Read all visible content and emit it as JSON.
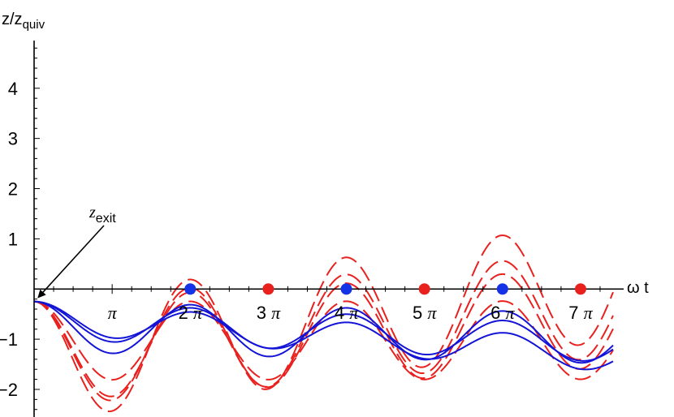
{
  "chart_data": {
    "type": "line",
    "title": "",
    "xlabel": "ω t",
    "ylabel": "z/z",
    "ylabel_sub": "quiv",
    "x_range": [
      0,
      23.3
    ],
    "ylim": [
      -2.55,
      4.95
    ],
    "grid": false,
    "x_ticks": [
      {
        "value": 3.14159,
        "coef": "",
        "symbol": "π"
      },
      {
        "value": 6.28319,
        "coef": "2 ",
        "symbol": "π"
      },
      {
        "value": 9.42478,
        "coef": "3 ",
        "symbol": "π"
      },
      {
        "value": 12.56637,
        "coef": "4 ",
        "symbol": "π"
      },
      {
        "value": 15.70796,
        "coef": "5 ",
        "symbol": "π"
      },
      {
        "value": 18.84956,
        "coef": "6 ",
        "symbol": "π"
      },
      {
        "value": 21.99115,
        "coef": "7 ",
        "symbol": "π"
      }
    ],
    "y_ticks": [
      {
        "value": -2,
        "label": "−2"
      },
      {
        "value": -1,
        "label": "−1"
      },
      {
        "value": 1,
        "label": "1"
      },
      {
        "value": 2,
        "label": "2"
      },
      {
        "value": 3,
        "label": "3"
      },
      {
        "value": 4,
        "label": "4"
      }
    ],
    "annotation": {
      "text": "z",
      "sub": "exit",
      "x": 0,
      "y": -0.25
    },
    "series": [
      {
        "style": "dashed",
        "color": "#e8211e",
        "phi": 1.2,
        "d": 0.07,
        "y0": -0.25
      },
      {
        "style": "dashed",
        "color": "#e8211e",
        "phi": 1.05,
        "d": 0.043,
        "y0": -0.25
      },
      {
        "style": "dashed",
        "color": "#e8211e",
        "phi": 0.99,
        "d": 0.029,
        "y0": -0.25
      },
      {
        "style": "dashed",
        "color": "#e8211e",
        "phi": 0.78,
        "d": 0.0005,
        "y0": -0.25
      },
      {
        "style": "solid",
        "color": "#1414d6",
        "phi": 0.5,
        "d": -0.01,
        "y0": -0.25
      },
      {
        "style": "solid",
        "color": "#1414d6",
        "phi": 0.37,
        "d": -0.02,
        "y0": -0.25
      },
      {
        "style": "solid",
        "color": "#1414d6",
        "phi": 0.31,
        "d": -0.033,
        "y0": -0.25
      }
    ],
    "points": [
      {
        "x": 6.28319,
        "y": 0,
        "color": "#1432e6"
      },
      {
        "x": 12.56637,
        "y": 0,
        "color": "#1432e6"
      },
      {
        "x": 18.84956,
        "y": 0,
        "color": "#1432e6"
      },
      {
        "x": 9.42478,
        "y": 0,
        "color": "#e8211e"
      },
      {
        "x": 15.70796,
        "y": 0,
        "color": "#e8211e"
      },
      {
        "x": 21.99115,
        "y": 0,
        "color": "#e8211e"
      }
    ]
  }
}
